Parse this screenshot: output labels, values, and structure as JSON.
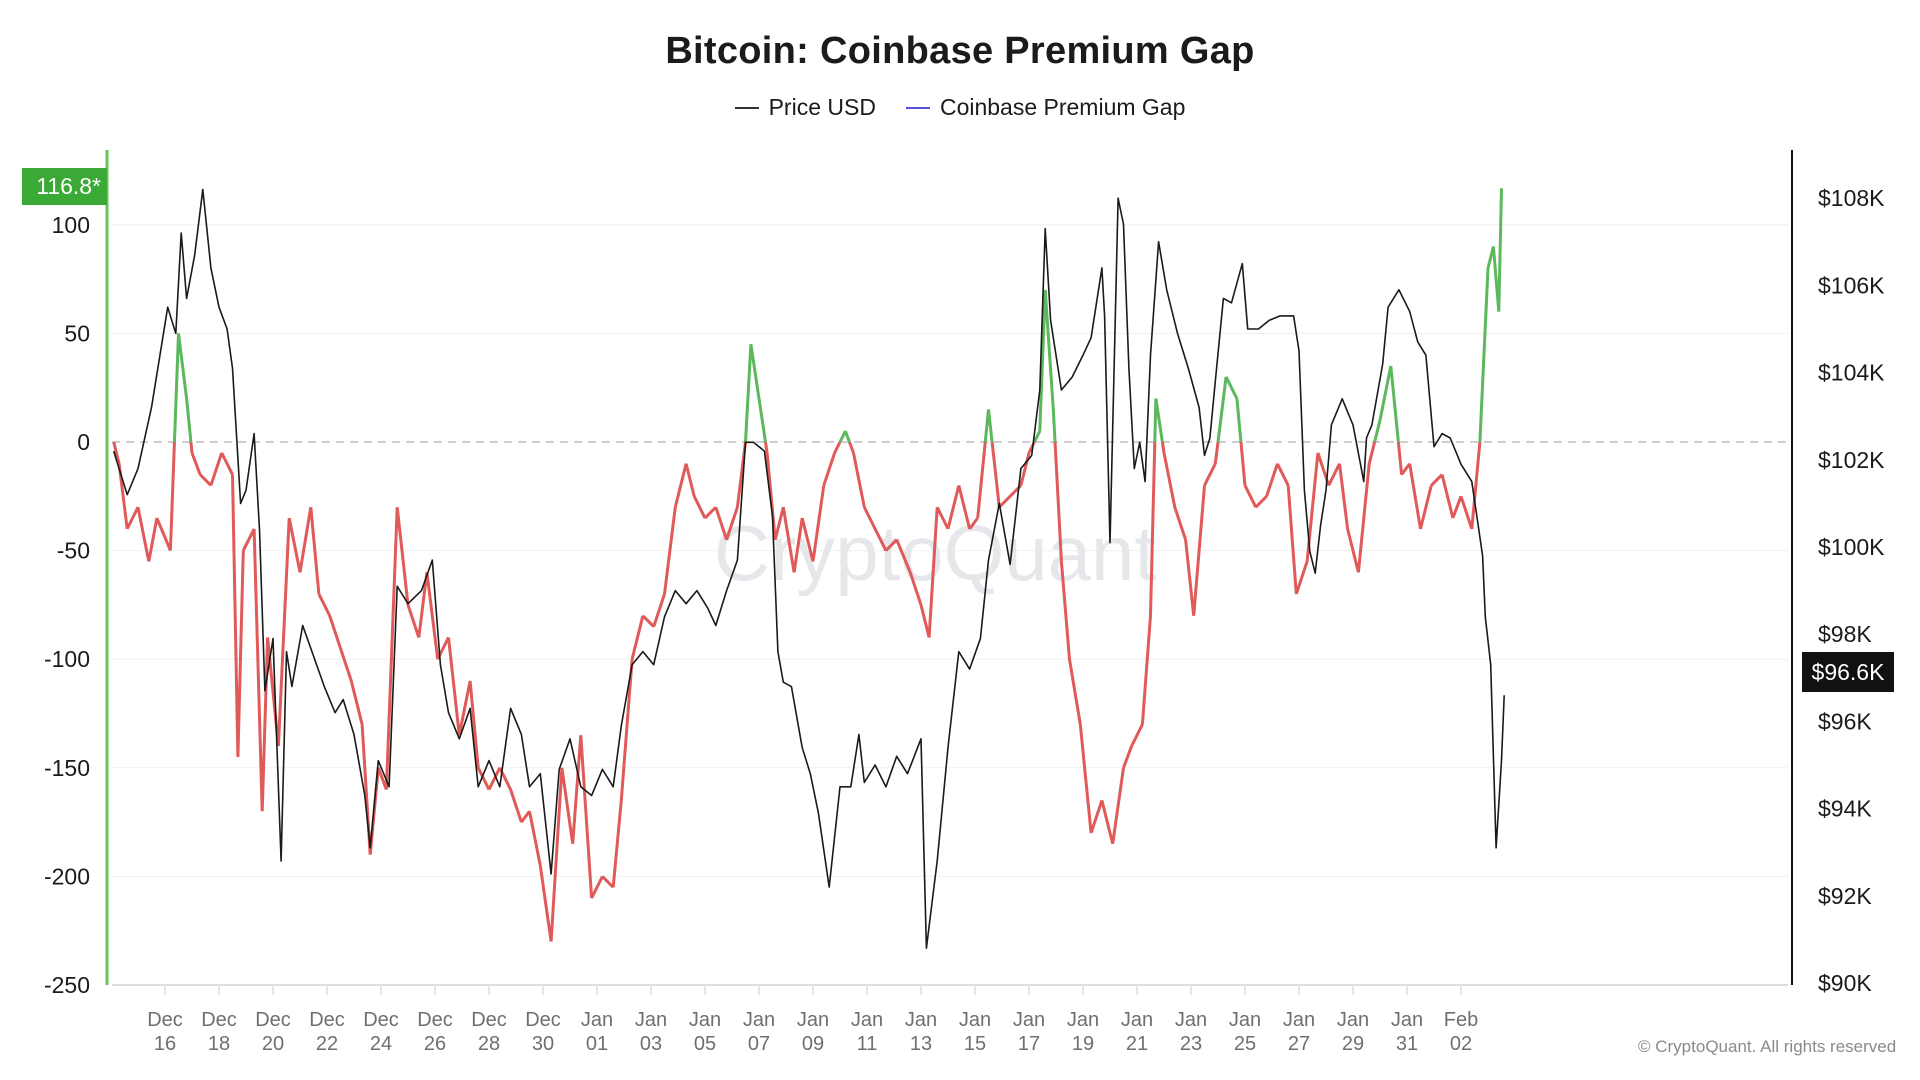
{
  "chart_data": {
    "type": "line",
    "title": "Bitcoin: Coinbase Premium Gap",
    "legend": [
      {
        "name": "Price USD",
        "color": "#333333"
      },
      {
        "name": "Coinbase Premium Gap",
        "color": "#5b4fd6"
      }
    ],
    "legend_position": "top-center",
    "x_unit": "days since Dec 14",
    "x_range": [
      0,
      51.6
    ],
    "x_ticks": [
      {
        "day": 2,
        "line1": "Dec",
        "line2": "16"
      },
      {
        "day": 4,
        "line1": "Dec",
        "line2": "18"
      },
      {
        "day": 6,
        "line1": "Dec",
        "line2": "20"
      },
      {
        "day": 8,
        "line1": "Dec",
        "line2": "22"
      },
      {
        "day": 10,
        "line1": "Dec",
        "line2": "24"
      },
      {
        "day": 12,
        "line1": "Dec",
        "line2": "26"
      },
      {
        "day": 14,
        "line1": "Dec",
        "line2": "28"
      },
      {
        "day": 16,
        "line1": "Dec",
        "line2": "30"
      },
      {
        "day": 18,
        "line1": "Jan",
        "line2": "01"
      },
      {
        "day": 20,
        "line1": "Jan",
        "line2": "03"
      },
      {
        "day": 22,
        "line1": "Jan",
        "line2": "05"
      },
      {
        "day": 24,
        "line1": "Jan",
        "line2": "07"
      },
      {
        "day": 26,
        "line1": "Jan",
        "line2": "09"
      },
      {
        "day": 28,
        "line1": "Jan",
        "line2": "11"
      },
      {
        "day": 30,
        "line1": "Jan",
        "line2": "13"
      },
      {
        "day": 32,
        "line1": "Jan",
        "line2": "15"
      },
      {
        "day": 34,
        "line1": "Jan",
        "line2": "17"
      },
      {
        "day": 36,
        "line1": "Jan",
        "line2": "19"
      },
      {
        "day": 38,
        "line1": "Jan",
        "line2": "21"
      },
      {
        "day": 40,
        "line1": "Jan",
        "line2": "23"
      },
      {
        "day": 42,
        "line1": "Jan",
        "line2": "25"
      },
      {
        "day": 44,
        "line1": "Jan",
        "line2": "27"
      },
      {
        "day": 46,
        "line1": "Jan",
        "line2": "29"
      },
      {
        "day": 48,
        "line1": "Jan",
        "line2": "31"
      },
      {
        "day": 50,
        "line1": "Feb",
        "line2": "02"
      }
    ],
    "y_left": {
      "label": "Coinbase Premium Gap",
      "range": [
        -250,
        130
      ],
      "ticks": [
        100,
        50,
        0,
        -50,
        -100,
        -150,
        -200,
        -250
      ]
    },
    "y_right": {
      "label": "Price USD",
      "range": [
        90,
        109.5
      ],
      "ticks": [
        108,
        106,
        104,
        102,
        100,
        98,
        96,
        94,
        92,
        90
      ],
      "tick_format": "$%K"
    },
    "zero_line": "dashed",
    "grid": true,
    "positive_color": "#5cb85c",
    "negative_color": "#e05a5a",
    "current_premium_label": "116.8*",
    "current_price_label": "$96.6K",
    "price_series": [
      [
        0.1,
        102.2
      ],
      [
        0.6,
        101.2
      ],
      [
        1.0,
        101.8
      ],
      [
        1.5,
        103.2
      ],
      [
        2.1,
        105.5
      ],
      [
        2.4,
        104.9
      ],
      [
        2.6,
        107.2
      ],
      [
        2.8,
        105.7
      ],
      [
        3.1,
        106.7
      ],
      [
        3.4,
        108.2
      ],
      [
        3.7,
        106.4
      ],
      [
        4.0,
        105.5
      ],
      [
        4.3,
        105.0
      ],
      [
        4.5,
        104.1
      ],
      [
        4.8,
        101.0
      ],
      [
        5.0,
        101.3
      ],
      [
        5.3,
        102.6
      ],
      [
        5.5,
        100.4
      ],
      [
        5.7,
        96.7
      ],
      [
        6.0,
        97.9
      ],
      [
        6.3,
        92.8
      ],
      [
        6.5,
        97.6
      ],
      [
        6.7,
        96.8
      ],
      [
        7.1,
        98.2
      ],
      [
        7.5,
        97.5
      ],
      [
        7.9,
        96.8
      ],
      [
        8.3,
        96.2
      ],
      [
        8.6,
        96.5
      ],
      [
        9.0,
        95.7
      ],
      [
        9.4,
        94.3
      ],
      [
        9.6,
        93.1
      ],
      [
        9.9,
        95.1
      ],
      [
        10.3,
        94.5
      ],
      [
        10.6,
        99.1
      ],
      [
        11.0,
        98.7
      ],
      [
        11.5,
        99.0
      ],
      [
        11.9,
        99.7
      ],
      [
        12.2,
        97.3
      ],
      [
        12.5,
        96.2
      ],
      [
        12.9,
        95.6
      ],
      [
        13.3,
        96.3
      ],
      [
        13.6,
        94.5
      ],
      [
        14.0,
        95.1
      ],
      [
        14.4,
        94.5
      ],
      [
        14.8,
        96.3
      ],
      [
        15.2,
        95.7
      ],
      [
        15.5,
        94.5
      ],
      [
        15.9,
        94.8
      ],
      [
        16.3,
        92.5
      ],
      [
        16.6,
        94.9
      ],
      [
        17.0,
        95.6
      ],
      [
        17.4,
        94.5
      ],
      [
        17.8,
        94.3
      ],
      [
        18.2,
        94.9
      ],
      [
        18.6,
        94.5
      ],
      [
        18.9,
        95.9
      ],
      [
        19.3,
        97.3
      ],
      [
        19.7,
        97.6
      ],
      [
        20.1,
        97.3
      ],
      [
        20.5,
        98.4
      ],
      [
        20.9,
        99.0
      ],
      [
        21.3,
        98.7
      ],
      [
        21.7,
        99.0
      ],
      [
        22.1,
        98.6
      ],
      [
        22.4,
        98.2
      ],
      [
        22.8,
        99.0
      ],
      [
        23.2,
        99.7
      ],
      [
        23.5,
        102.4
      ],
      [
        23.8,
        102.4
      ],
      [
        24.2,
        102.2
      ],
      [
        24.5,
        100.7
      ],
      [
        24.7,
        97.6
      ],
      [
        24.9,
        96.9
      ],
      [
        25.2,
        96.8
      ],
      [
        25.6,
        95.4
      ],
      [
        25.9,
        94.8
      ],
      [
        26.2,
        93.9
      ],
      [
        26.6,
        92.2
      ],
      [
        27.0,
        94.5
      ],
      [
        27.4,
        94.5
      ],
      [
        27.7,
        95.7
      ],
      [
        27.9,
        94.6
      ],
      [
        28.3,
        95.0
      ],
      [
        28.7,
        94.5
      ],
      [
        29.1,
        95.2
      ],
      [
        29.5,
        94.8
      ],
      [
        30.0,
        95.6
      ],
      [
        30.2,
        90.8
      ],
      [
        30.6,
        92.8
      ],
      [
        31.0,
        95.4
      ],
      [
        31.4,
        97.6
      ],
      [
        31.8,
        97.2
      ],
      [
        32.2,
        97.9
      ],
      [
        32.5,
        99.7
      ],
      [
        32.9,
        101.0
      ],
      [
        33.3,
        99.6
      ],
      [
        33.7,
        101.8
      ],
      [
        34.1,
        102.1
      ],
      [
        34.4,
        103.6
      ],
      [
        34.6,
        107.3
      ],
      [
        34.8,
        105.2
      ],
      [
        35.2,
        103.6
      ],
      [
        35.6,
        103.9
      ],
      [
        36.0,
        104.4
      ],
      [
        36.3,
        104.8
      ],
      [
        36.7,
        106.4
      ],
      [
        36.8,
        105.3
      ],
      [
        37.0,
        100.1
      ],
      [
        37.3,
        108.0
      ],
      [
        37.5,
        107.4
      ],
      [
        37.7,
        104.1
      ],
      [
        37.9,
        101.8
      ],
      [
        38.1,
        102.4
      ],
      [
        38.3,
        101.5
      ],
      [
        38.5,
        104.4
      ],
      [
        38.8,
        107.0
      ],
      [
        39.1,
        105.9
      ],
      [
        39.5,
        104.9
      ],
      [
        39.9,
        104.1
      ],
      [
        40.3,
        103.2
      ],
      [
        40.5,
        102.1
      ],
      [
        40.7,
        102.5
      ],
      [
        40.9,
        103.8
      ],
      [
        41.2,
        105.7
      ],
      [
        41.5,
        105.6
      ],
      [
        41.9,
        106.5
      ],
      [
        42.1,
        105.0
      ],
      [
        42.5,
        105.0
      ],
      [
        42.9,
        105.2
      ],
      [
        43.3,
        105.3
      ],
      [
        43.8,
        105.3
      ],
      [
        44.0,
        104.5
      ],
      [
        44.2,
        101.3
      ],
      [
        44.4,
        99.9
      ],
      [
        44.6,
        99.4
      ],
      [
        44.8,
        100.5
      ],
      [
        45.0,
        101.3
      ],
      [
        45.2,
        102.8
      ],
      [
        45.6,
        103.4
      ],
      [
        46.0,
        102.8
      ],
      [
        46.4,
        101.5
      ],
      [
        46.5,
        102.5
      ],
      [
        46.7,
        102.8
      ],
      [
        47.1,
        104.2
      ],
      [
        47.3,
        105.5
      ],
      [
        47.7,
        105.9
      ],
      [
        48.1,
        105.4
      ],
      [
        48.4,
        104.7
      ],
      [
        48.7,
        104.4
      ],
      [
        49.0,
        102.3
      ],
      [
        49.3,
        102.6
      ],
      [
        49.6,
        102.5
      ],
      [
        50.0,
        101.9
      ],
      [
        50.4,
        101.5
      ],
      [
        50.8,
        99.8
      ],
      [
        50.9,
        98.4
      ],
      [
        51.1,
        97.3
      ],
      [
        51.3,
        93.1
      ],
      [
        51.5,
        95.1
      ],
      [
        51.6,
        96.6
      ]
    ],
    "premium_gap_series": [
      [
        0.1,
        0
      ],
      [
        0.3,
        -10
      ],
      [
        0.6,
        -40
      ],
      [
        1.0,
        -30
      ],
      [
        1.4,
        -55
      ],
      [
        1.7,
        -35
      ],
      [
        2.2,
        -50
      ],
      [
        2.5,
        50
      ],
      [
        2.8,
        20
      ],
      [
        3.0,
        -5
      ],
      [
        3.3,
        -15
      ],
      [
        3.7,
        -20
      ],
      [
        4.1,
        -5
      ],
      [
        4.5,
        -15
      ],
      [
        4.7,
        -145
      ],
      [
        4.9,
        -50
      ],
      [
        5.3,
        -40
      ],
      [
        5.6,
        -170
      ],
      [
        5.8,
        -90
      ],
      [
        6.2,
        -140
      ],
      [
        6.6,
        -35
      ],
      [
        7.0,
        -60
      ],
      [
        7.4,
        -30
      ],
      [
        7.7,
        -70
      ],
      [
        8.1,
        -80
      ],
      [
        8.5,
        -95
      ],
      [
        8.9,
        -110
      ],
      [
        9.3,
        -130
      ],
      [
        9.6,
        -190
      ],
      [
        9.9,
        -150
      ],
      [
        10.2,
        -160
      ],
      [
        10.6,
        -30
      ],
      [
        11.0,
        -75
      ],
      [
        11.4,
        -90
      ],
      [
        11.7,
        -60
      ],
      [
        12.1,
        -100
      ],
      [
        12.5,
        -90
      ],
      [
        12.9,
        -135
      ],
      [
        13.3,
        -110
      ],
      [
        13.6,
        -150
      ],
      [
        14.0,
        -160
      ],
      [
        14.4,
        -150
      ],
      [
        14.8,
        -160
      ],
      [
        15.2,
        -175
      ],
      [
        15.5,
        -170
      ],
      [
        15.9,
        -195
      ],
      [
        16.3,
        -230
      ],
      [
        16.7,
        -150
      ],
      [
        17.1,
        -185
      ],
      [
        17.4,
        -135
      ],
      [
        17.8,
        -210
      ],
      [
        18.2,
        -200
      ],
      [
        18.6,
        -205
      ],
      [
        18.9,
        -165
      ],
      [
        19.3,
        -100
      ],
      [
        19.7,
        -80
      ],
      [
        20.1,
        -85
      ],
      [
        20.5,
        -70
      ],
      [
        20.9,
        -30
      ],
      [
        21.3,
        -10
      ],
      [
        21.6,
        -25
      ],
      [
        22.0,
        -35
      ],
      [
        22.4,
        -30
      ],
      [
        22.8,
        -45
      ],
      [
        23.2,
        -30
      ],
      [
        23.5,
        0
      ],
      [
        23.7,
        45
      ],
      [
        24.0,
        20
      ],
      [
        24.3,
        -5
      ],
      [
        24.6,
        -45
      ],
      [
        24.9,
        -30
      ],
      [
        25.3,
        -60
      ],
      [
        25.6,
        -35
      ],
      [
        26.0,
        -55
      ],
      [
        26.4,
        -20
      ],
      [
        26.8,
        -5
      ],
      [
        27.2,
        5
      ],
      [
        27.5,
        -5
      ],
      [
        27.9,
        -30
      ],
      [
        28.3,
        -40
      ],
      [
        28.7,
        -50
      ],
      [
        29.1,
        -45
      ],
      [
        29.6,
        -60
      ],
      [
        30.0,
        -75
      ],
      [
        30.3,
        -90
      ],
      [
        30.6,
        -30
      ],
      [
        31.0,
        -40
      ],
      [
        31.4,
        -20
      ],
      [
        31.8,
        -40
      ],
      [
        32.1,
        -35
      ],
      [
        32.5,
        15
      ],
      [
        32.9,
        -30
      ],
      [
        33.3,
        -25
      ],
      [
        33.7,
        -20
      ],
      [
        34.0,
        -5
      ],
      [
        34.4,
        5
      ],
      [
        34.6,
        70
      ],
      [
        34.9,
        15
      ],
      [
        35.2,
        -55
      ],
      [
        35.5,
        -100
      ],
      [
        35.9,
        -130
      ],
      [
        36.3,
        -180
      ],
      [
        36.7,
        -165
      ],
      [
        37.1,
        -185
      ],
      [
        37.5,
        -150
      ],
      [
        37.8,
        -140
      ],
      [
        38.2,
        -130
      ],
      [
        38.5,
        -80
      ],
      [
        38.7,
        20
      ],
      [
        39.0,
        -5
      ],
      [
        39.4,
        -30
      ],
      [
        39.8,
        -45
      ],
      [
        40.1,
        -80
      ],
      [
        40.5,
        -20
      ],
      [
        40.9,
        -10
      ],
      [
        41.3,
        30
      ],
      [
        41.7,
        20
      ],
      [
        42.0,
        -20
      ],
      [
        42.4,
        -30
      ],
      [
        42.8,
        -25
      ],
      [
        43.2,
        -10
      ],
      [
        43.6,
        -20
      ],
      [
        43.9,
        -70
      ],
      [
        44.3,
        -55
      ],
      [
        44.7,
        -5
      ],
      [
        45.1,
        -20
      ],
      [
        45.5,
        -10
      ],
      [
        45.8,
        -40
      ],
      [
        46.2,
        -60
      ],
      [
        46.6,
        -10
      ],
      [
        47.0,
        10
      ],
      [
        47.4,
        35
      ],
      [
        47.8,
        -15
      ],
      [
        48.1,
        -10
      ],
      [
        48.5,
        -40
      ],
      [
        48.9,
        -20
      ],
      [
        49.3,
        -15
      ],
      [
        49.7,
        -35
      ],
      [
        50.0,
        -25
      ],
      [
        50.4,
        -40
      ],
      [
        50.7,
        0
      ],
      [
        51.0,
        80
      ],
      [
        51.2,
        90
      ],
      [
        51.4,
        60
      ],
      [
        51.5,
        116.8
      ]
    ],
    "watermark": "CryptoQuant"
  },
  "legend_labels": {
    "price": "Price USD",
    "premium": "Coinbase Premium Gap"
  },
  "copyright": "© CryptoQuant. All rights reserved"
}
